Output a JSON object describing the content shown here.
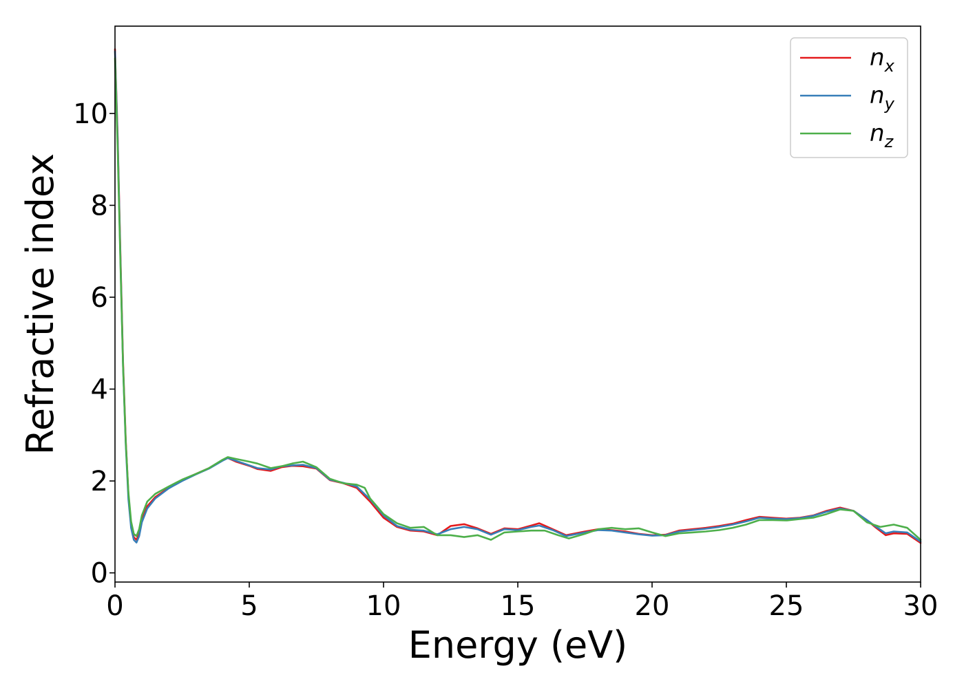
{
  "chart_data": {
    "type": "line",
    "xlabel": "Energy (eV)",
    "ylabel": "Refractive index",
    "xlim": [
      0,
      30
    ],
    "ylim": [
      -0.2,
      11.9
    ],
    "xticks": [
      0,
      5,
      10,
      15,
      20,
      25,
      30
    ],
    "yticks": [
      0,
      2,
      4,
      6,
      8,
      10
    ],
    "grid": false,
    "legend_position": "top-right",
    "series": [
      {
        "name": "n",
        "subscript": "x",
        "color": "#e41a1c",
        "points": [
          [
            0,
            11.4
          ],
          [
            0.1,
            9.5
          ],
          [
            0.2,
            7.0
          ],
          [
            0.3,
            4.6
          ],
          [
            0.4,
            2.9
          ],
          [
            0.5,
            1.7
          ],
          [
            0.6,
            1.05
          ],
          [
            0.7,
            0.78
          ],
          [
            0.8,
            0.72
          ],
          [
            0.9,
            0.85
          ],
          [
            1.0,
            1.15
          ],
          [
            1.2,
            1.45
          ],
          [
            1.5,
            1.65
          ],
          [
            2.0,
            1.85
          ],
          [
            2.5,
            2.02
          ],
          [
            3.0,
            2.15
          ],
          [
            3.5,
            2.28
          ],
          [
            4.0,
            2.45
          ],
          [
            4.2,
            2.5
          ],
          [
            4.5,
            2.42
          ],
          [
            5.0,
            2.33
          ],
          [
            5.3,
            2.26
          ],
          [
            5.8,
            2.22
          ],
          [
            6.2,
            2.3
          ],
          [
            6.6,
            2.33
          ],
          [
            7.0,
            2.32
          ],
          [
            7.5,
            2.27
          ],
          [
            8.0,
            2.02
          ],
          [
            8.5,
            1.95
          ],
          [
            9.0,
            1.85
          ],
          [
            9.5,
            1.55
          ],
          [
            10.0,
            1.2
          ],
          [
            10.5,
            1.0
          ],
          [
            11.0,
            0.92
          ],
          [
            11.5,
            0.9
          ],
          [
            12.0,
            0.82
          ],
          [
            12.5,
            1.02
          ],
          [
            13.0,
            1.06
          ],
          [
            13.5,
            0.97
          ],
          [
            14.0,
            0.85
          ],
          [
            14.5,
            0.97
          ],
          [
            15.0,
            0.95
          ],
          [
            15.5,
            1.03
          ],
          [
            15.8,
            1.08
          ],
          [
            16.3,
            0.95
          ],
          [
            16.8,
            0.82
          ],
          [
            17.5,
            0.9
          ],
          [
            18.0,
            0.95
          ],
          [
            18.5,
            0.93
          ],
          [
            19.0,
            0.9
          ],
          [
            19.5,
            0.85
          ],
          [
            20.0,
            0.82
          ],
          [
            20.5,
            0.83
          ],
          [
            21.0,
            0.92
          ],
          [
            21.5,
            0.95
          ],
          [
            22.0,
            0.98
          ],
          [
            22.5,
            1.02
          ],
          [
            23.0,
            1.07
          ],
          [
            23.5,
            1.15
          ],
          [
            24.0,
            1.22
          ],
          [
            24.5,
            1.2
          ],
          [
            25.0,
            1.18
          ],
          [
            25.5,
            1.2
          ],
          [
            26.0,
            1.25
          ],
          [
            26.5,
            1.35
          ],
          [
            27.0,
            1.42
          ],
          [
            27.5,
            1.35
          ],
          [
            28.0,
            1.15
          ],
          [
            28.3,
            1.0
          ],
          [
            28.7,
            0.82
          ],
          [
            29.0,
            0.86
          ],
          [
            29.5,
            0.85
          ],
          [
            30.0,
            0.65
          ]
        ]
      },
      {
        "name": "n",
        "subscript": "y",
        "color": "#377eb8",
        "points": [
          [
            0,
            11.35
          ],
          [
            0.1,
            9.4
          ],
          [
            0.2,
            6.9
          ],
          [
            0.3,
            4.5
          ],
          [
            0.4,
            2.8
          ],
          [
            0.5,
            1.6
          ],
          [
            0.6,
            0.98
          ],
          [
            0.7,
            0.72
          ],
          [
            0.8,
            0.66
          ],
          [
            0.9,
            0.8
          ],
          [
            1.0,
            1.1
          ],
          [
            1.2,
            1.4
          ],
          [
            1.5,
            1.62
          ],
          [
            2.0,
            1.84
          ],
          [
            2.5,
            2.0
          ],
          [
            3.0,
            2.14
          ],
          [
            3.5,
            2.27
          ],
          [
            4.0,
            2.44
          ],
          [
            4.2,
            2.5
          ],
          [
            4.5,
            2.44
          ],
          [
            5.0,
            2.34
          ],
          [
            5.3,
            2.28
          ],
          [
            5.8,
            2.25
          ],
          [
            6.2,
            2.32
          ],
          [
            6.6,
            2.34
          ],
          [
            7.0,
            2.35
          ],
          [
            7.5,
            2.28
          ],
          [
            8.0,
            2.03
          ],
          [
            8.5,
            1.96
          ],
          [
            9.0,
            1.88
          ],
          [
            9.5,
            1.6
          ],
          [
            10.0,
            1.25
          ],
          [
            10.5,
            1.02
          ],
          [
            11.0,
            0.94
          ],
          [
            11.5,
            0.92
          ],
          [
            12.0,
            0.84
          ],
          [
            12.5,
            0.95
          ],
          [
            13.0,
            1.0
          ],
          [
            13.5,
            0.95
          ],
          [
            14.0,
            0.83
          ],
          [
            14.5,
            0.95
          ],
          [
            15.0,
            0.93
          ],
          [
            15.5,
            1.0
          ],
          [
            15.8,
            1.03
          ],
          [
            16.3,
            0.93
          ],
          [
            16.8,
            0.8
          ],
          [
            17.5,
            0.88
          ],
          [
            18.0,
            0.93
          ],
          [
            18.5,
            0.92
          ],
          [
            19.0,
            0.88
          ],
          [
            19.5,
            0.84
          ],
          [
            20.0,
            0.81
          ],
          [
            20.5,
            0.82
          ],
          [
            21.0,
            0.9
          ],
          [
            21.5,
            0.93
          ],
          [
            22.0,
            0.96
          ],
          [
            22.5,
            1.0
          ],
          [
            23.0,
            1.05
          ],
          [
            23.5,
            1.12
          ],
          [
            24.0,
            1.2
          ],
          [
            24.5,
            1.18
          ],
          [
            25.0,
            1.17
          ],
          [
            25.5,
            1.19
          ],
          [
            26.0,
            1.24
          ],
          [
            26.5,
            1.33
          ],
          [
            27.0,
            1.4
          ],
          [
            27.5,
            1.35
          ],
          [
            28.0,
            1.15
          ],
          [
            28.3,
            1.02
          ],
          [
            28.7,
            0.86
          ],
          [
            29.0,
            0.9
          ],
          [
            29.5,
            0.88
          ],
          [
            30.0,
            0.68
          ]
        ]
      },
      {
        "name": "n",
        "subscript": "z",
        "color": "#4daf4a",
        "points": [
          [
            0,
            11.2
          ],
          [
            0.1,
            9.2
          ],
          [
            0.2,
            6.8
          ],
          [
            0.3,
            4.5
          ],
          [
            0.4,
            2.85
          ],
          [
            0.5,
            1.75
          ],
          [
            0.6,
            1.12
          ],
          [
            0.7,
            0.85
          ],
          [
            0.8,
            0.8
          ],
          [
            0.9,
            0.95
          ],
          [
            1.0,
            1.25
          ],
          [
            1.2,
            1.55
          ],
          [
            1.5,
            1.72
          ],
          [
            2.0,
            1.88
          ],
          [
            2.5,
            2.03
          ],
          [
            3.0,
            2.15
          ],
          [
            3.5,
            2.28
          ],
          [
            4.0,
            2.46
          ],
          [
            4.2,
            2.52
          ],
          [
            4.5,
            2.48
          ],
          [
            5.0,
            2.42
          ],
          [
            5.3,
            2.38
          ],
          [
            5.8,
            2.28
          ],
          [
            6.2,
            2.32
          ],
          [
            6.6,
            2.38
          ],
          [
            7.0,
            2.42
          ],
          [
            7.5,
            2.3
          ],
          [
            8.0,
            2.05
          ],
          [
            8.5,
            1.95
          ],
          [
            9.0,
            1.92
          ],
          [
            9.3,
            1.85
          ],
          [
            9.5,
            1.62
          ],
          [
            10.0,
            1.28
          ],
          [
            10.5,
            1.08
          ],
          [
            11.0,
            0.98
          ],
          [
            11.5,
            1.0
          ],
          [
            12.0,
            0.82
          ],
          [
            12.5,
            0.82
          ],
          [
            13.0,
            0.78
          ],
          [
            13.5,
            0.82
          ],
          [
            14.0,
            0.72
          ],
          [
            14.5,
            0.88
          ],
          [
            15.0,
            0.9
          ],
          [
            15.5,
            0.92
          ],
          [
            16.0,
            0.92
          ],
          [
            16.5,
            0.82
          ],
          [
            16.9,
            0.75
          ],
          [
            17.5,
            0.85
          ],
          [
            18.0,
            0.95
          ],
          [
            18.5,
            0.98
          ],
          [
            19.0,
            0.95
          ],
          [
            19.5,
            0.97
          ],
          [
            20.0,
            0.88
          ],
          [
            20.5,
            0.8
          ],
          [
            21.0,
            0.86
          ],
          [
            21.5,
            0.88
          ],
          [
            22.0,
            0.9
          ],
          [
            22.5,
            0.93
          ],
          [
            23.0,
            0.98
          ],
          [
            23.5,
            1.05
          ],
          [
            24.0,
            1.15
          ],
          [
            24.5,
            1.15
          ],
          [
            25.0,
            1.14
          ],
          [
            25.5,
            1.17
          ],
          [
            26.0,
            1.2
          ],
          [
            26.5,
            1.28
          ],
          [
            27.0,
            1.38
          ],
          [
            27.5,
            1.35
          ],
          [
            28.0,
            1.1
          ],
          [
            28.5,
            1.0
          ],
          [
            29.0,
            1.05
          ],
          [
            29.5,
            0.98
          ],
          [
            30.0,
            0.72
          ]
        ]
      }
    ]
  }
}
